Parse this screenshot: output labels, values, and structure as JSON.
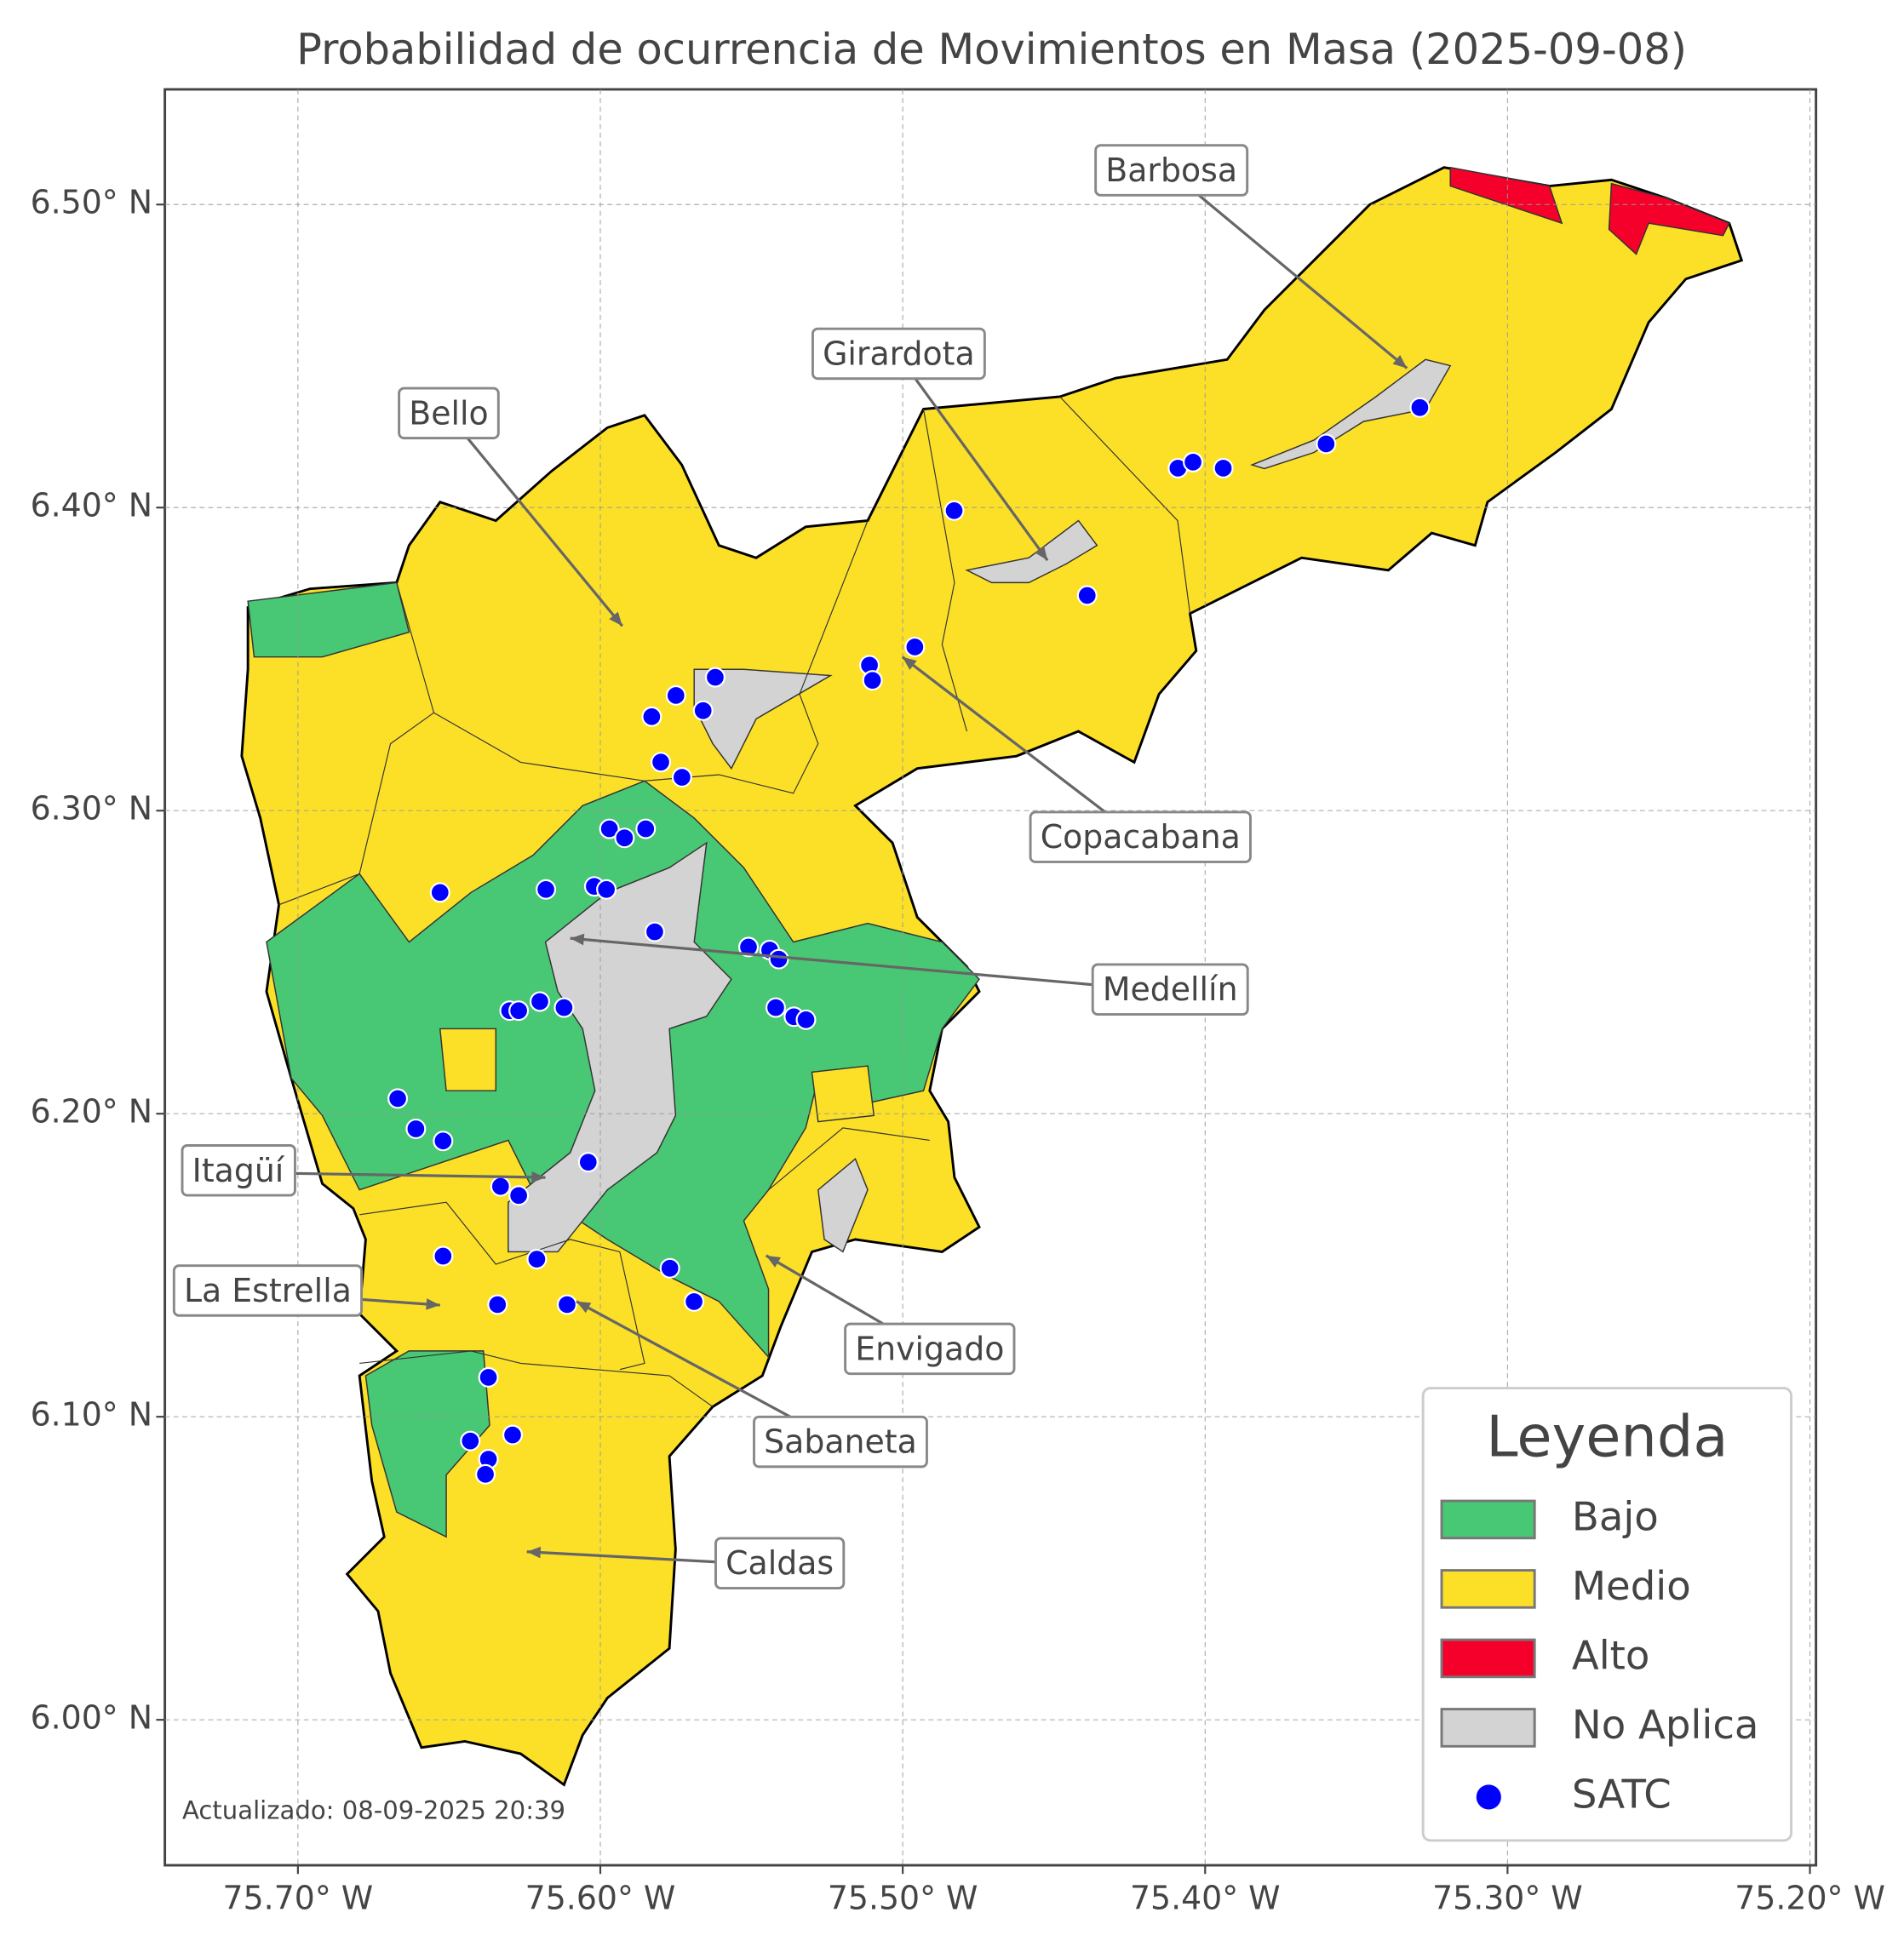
{
  "chart_data": {
    "type": "map",
    "title": "Probabilidad de ocurrencia de Movimientos en Masa (2025-09-08)",
    "xlim": [
      -75.744,
      -75.198
    ],
    "ylim": [
      5.952,
      6.538
    ],
    "xticks": [
      {
        "value": -75.7,
        "label": "75.70° W"
      },
      {
        "value": -75.6,
        "label": "75.60° W"
      },
      {
        "value": -75.5,
        "label": "75.50° W"
      },
      {
        "value": -75.4,
        "label": "75.40° W"
      },
      {
        "value": -75.3,
        "label": "75.30° W"
      },
      {
        "value": -75.2,
        "label": "75.20° W"
      }
    ],
    "yticks": [
      {
        "value": 6.0,
        "label": "6.00° N"
      },
      {
        "value": 6.1,
        "label": "6.10° N"
      },
      {
        "value": 6.2,
        "label": "6.20° N"
      },
      {
        "value": 6.3,
        "label": "6.30° N"
      },
      {
        "value": 6.4,
        "label": "6.40° N"
      },
      {
        "value": 6.5,
        "label": "6.50° N"
      }
    ],
    "grid": true,
    "annotations": [
      "Barbosa",
      "Girardota",
      "Bello",
      "Copacabana",
      "Medellín",
      "Itagüí",
      "La Estrella",
      "Envigado",
      "Sabaneta",
      "Caldas"
    ],
    "legend": {
      "title": "Leyenda",
      "position": "lower right",
      "entries": [
        {
          "name": "Bajo",
          "color": "#48c774"
        },
        {
          "name": "Medio",
          "color": "#fce028"
        },
        {
          "name": "Alto",
          "color": "#f5002a"
        },
        {
          "name": "No Aplica",
          "color": "#d3d3d3"
        }
      ]
    },
    "series": [
      {
        "name": "SATC",
        "color": "#0000ff",
        "x": [
          -75.483,
          -75.409,
          -75.404,
          -75.394,
          -75.36,
          -75.329,
          -75.439,
          -75.496,
          -75.511,
          -75.51,
          -75.562,
          -75.575,
          -75.566,
          -75.583,
          -75.58,
          -75.573,
          -75.597,
          -75.592,
          -75.585,
          -75.602,
          -75.598,
          -75.618,
          -75.653,
          -75.582,
          -75.551,
          -75.544,
          -75.541,
          -75.542,
          -75.536,
          -75.532,
          -75.63,
          -75.627,
          -75.62,
          -75.612,
          -75.667,
          -75.661,
          -75.652,
          -75.604,
          -75.633,
          -75.627,
          -75.621,
          -75.652,
          -75.577,
          -75.569,
          -75.634,
          -75.611,
          -75.637,
          -75.643,
          -75.629,
          -75.637,
          -75.638
        ],
        "values": [
          6.399,
          6.413,
          6.415,
          6.413,
          6.421,
          6.433,
          6.371,
          6.354,
          6.348,
          6.343,
          6.344,
          6.338,
          6.333,
          6.331,
          6.316,
          6.311,
          6.294,
          6.291,
          6.294,
          6.275,
          6.274,
          6.274,
          6.273,
          6.26,
          6.255,
          6.254,
          6.251,
          6.235,
          6.232,
          6.231,
          6.234,
          6.234,
          6.237,
          6.235,
          6.205,
          6.195,
          6.191,
          6.184,
          6.176,
          6.173,
          6.152,
          6.153,
          6.149,
          6.138,
          6.137,
          6.137,
          6.113,
          6.092,
          6.094,
          6.086,
          6.081
        ]
      }
    ],
    "footnote": "Actualizado: 08-09-2025 20:39"
  }
}
